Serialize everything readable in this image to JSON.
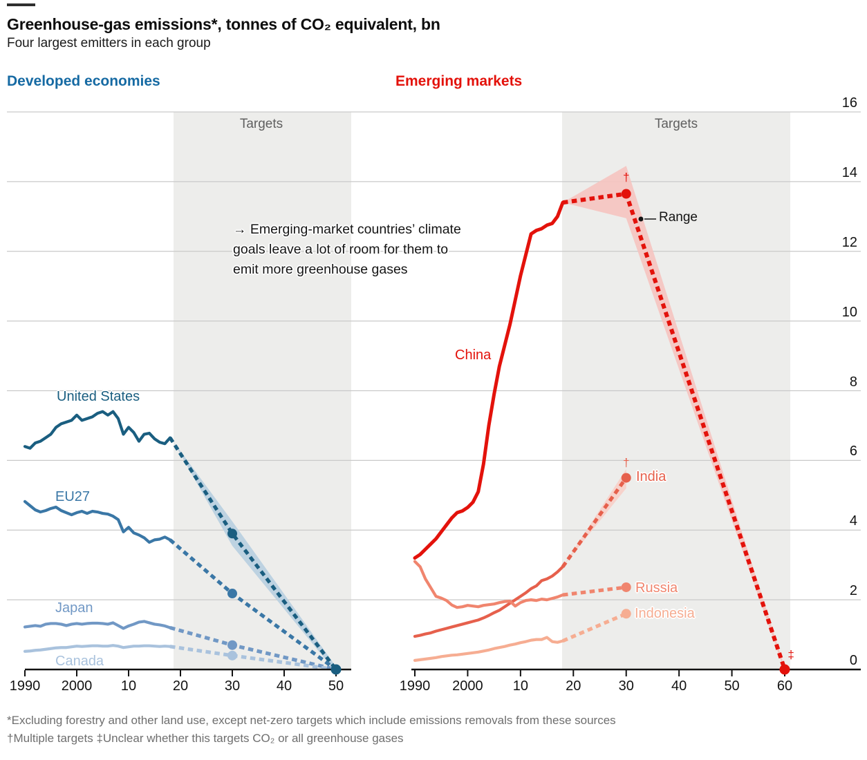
{
  "header": {
    "title": "Greenhouse-gas emissions*, tonnes of CO₂ equivalent, bn",
    "subtitle": "Four largest emitters in each group"
  },
  "panels": {
    "left_heading": "Developed economies",
    "left_heading_color": "#166aa3",
    "right_heading": "Emerging markets",
    "right_heading_color": "#e3120b"
  },
  "labels": {
    "targets": "Targets",
    "range": "Range"
  },
  "annotation": {
    "lines": [
      "→ Emerging-market countries’ climate",
      "goals leave a lot of room for them to",
      "emit more greenhouse gases"
    ]
  },
  "footnotes": [
    "*Excluding forestry and other land use, except net-zero targets which include emissions removals from these sources",
    "†Multiple targets ‡Unclear whether this targets CO₂ or all greenhouse gases"
  ],
  "y_axis": {
    "ticks": [
      0,
      2,
      4,
      6,
      8,
      10,
      12,
      14,
      16
    ],
    "max": 16
  },
  "chart_data": [
    {
      "type": "line",
      "panel": "developed",
      "title": "Developed economies",
      "unit": "tonnes of CO₂ equivalent, bn",
      "x_range": [
        1990,
        2050
      ],
      "ylim": [
        0,
        16
      ],
      "grid": true,
      "targets_shading": "2018-2050",
      "x_ticks": [
        [
          "1990",
          1990
        ],
        [
          "2000",
          2000
        ],
        [
          "10",
          2010
        ],
        [
          "20",
          2020
        ],
        [
          "30",
          2030
        ],
        [
          "40",
          2040
        ],
        [
          "50",
          2050
        ]
      ],
      "history_years_start": 1990,
      "series": [
        {
          "name": "United States",
          "color": "#1a5e80",
          "history": [
            6.4,
            6.35,
            6.5,
            6.55,
            6.65,
            6.75,
            6.95,
            7.05,
            7.1,
            7.15,
            7.3,
            7.15,
            7.2,
            7.25,
            7.35,
            7.4,
            7.3,
            7.4,
            7.2,
            6.75,
            6.95,
            6.8,
            6.55,
            6.75,
            6.78,
            6.62,
            6.52,
            6.48,
            6.65
          ],
          "target": [
            [
              2018,
              6.65
            ],
            [
              2030,
              3.9
            ],
            [
              2050,
              0
            ]
          ],
          "target_dot": [
            2030,
            3.9
          ]
        },
        {
          "name": "EU27",
          "color": "#3a77a6",
          "history": [
            4.82,
            4.7,
            4.58,
            4.52,
            4.56,
            4.62,
            4.66,
            4.56,
            4.5,
            4.44,
            4.5,
            4.54,
            4.48,
            4.54,
            4.52,
            4.48,
            4.46,
            4.4,
            4.3,
            3.95,
            4.08,
            3.92,
            3.86,
            3.78,
            3.65,
            3.72,
            3.74,
            3.8,
            3.72
          ],
          "target": [
            [
              2018,
              3.72
            ],
            [
              2030,
              2.18
            ],
            [
              2050,
              0
            ]
          ],
          "target_dot": [
            2030,
            2.18
          ]
        },
        {
          "name": "Japan",
          "color": "#7198c5",
          "history": [
            1.22,
            1.24,
            1.26,
            1.24,
            1.3,
            1.32,
            1.32,
            1.3,
            1.26,
            1.3,
            1.32,
            1.3,
            1.32,
            1.33,
            1.33,
            1.32,
            1.3,
            1.34,
            1.26,
            1.18,
            1.25,
            1.3,
            1.36,
            1.38,
            1.34,
            1.3,
            1.28,
            1.25,
            1.2
          ],
          "target": [
            [
              2018,
              1.2
            ],
            [
              2030,
              0.7
            ],
            [
              2050,
              0
            ]
          ],
          "target_dot": [
            2030,
            0.7
          ]
        },
        {
          "name": "Canada",
          "color": "#a9c2dd",
          "history": [
            0.52,
            0.53,
            0.55,
            0.56,
            0.58,
            0.6,
            0.62,
            0.63,
            0.63,
            0.65,
            0.67,
            0.66,
            0.67,
            0.68,
            0.68,
            0.67,
            0.67,
            0.69,
            0.67,
            0.63,
            0.65,
            0.67,
            0.67,
            0.68,
            0.68,
            0.67,
            0.66,
            0.67,
            0.66
          ],
          "target": [
            [
              2018,
              0.66
            ],
            [
              2030,
              0.4
            ],
            [
              2050,
              0
            ]
          ],
          "target_dot": [
            2030,
            0.4
          ]
        }
      ],
      "bands": [
        {
          "series": "United States",
          "color": "#b9cfe0",
          "points": [
            [
              2018.6,
              6.55
            ],
            [
              2030,
              4.25
            ],
            [
              2050,
              0.08
            ],
            [
              2050,
              -0.08
            ],
            [
              2030,
              3.55
            ]
          ]
        }
      ],
      "end_dot": {
        "year": 2050,
        "value": 0,
        "color": "#1a5e80"
      },
      "markers": []
    },
    {
      "type": "line",
      "panel": "emerging",
      "title": "Emerging markets",
      "unit": "tonnes of CO₂ equivalent, bn",
      "x_range": [
        1990,
        2060
      ],
      "ylim": [
        0,
        16
      ],
      "grid": true,
      "targets_shading": "2018-2060",
      "x_ticks": [
        [
          "1990",
          1990
        ],
        [
          "2000",
          2000
        ],
        [
          "10",
          2010
        ],
        [
          "20",
          2020
        ],
        [
          "30",
          2030
        ],
        [
          "40",
          2040
        ],
        [
          "50",
          2050
        ],
        [
          "60",
          2060
        ]
      ],
      "history_years_start": 1990,
      "series": [
        {
          "name": "China",
          "color": "#e3120b",
          "history": [
            3.2,
            3.3,
            3.45,
            3.6,
            3.75,
            3.95,
            4.15,
            4.35,
            4.5,
            4.55,
            4.65,
            4.8,
            5.1,
            5.9,
            7.0,
            7.9,
            8.7,
            9.3,
            9.9,
            10.6,
            11.3,
            11.9,
            12.5,
            12.6,
            12.65,
            12.75,
            12.8,
            13.0,
            13.4
          ],
          "target": [
            [
              2018,
              13.4
            ],
            [
              2030,
              13.65
            ],
            [
              2060,
              0
            ]
          ],
          "target_dot": [
            2030,
            13.65
          ]
        },
        {
          "name": "India",
          "color": "#e6604c",
          "history": [
            0.95,
            0.98,
            1.02,
            1.05,
            1.1,
            1.14,
            1.18,
            1.22,
            1.26,
            1.3,
            1.34,
            1.38,
            1.42,
            1.48,
            1.55,
            1.63,
            1.7,
            1.8,
            1.9,
            2.0,
            2.1,
            2.2,
            2.32,
            2.4,
            2.55,
            2.6,
            2.68,
            2.8,
            2.95
          ],
          "target": [
            [
              2018,
              2.95
            ],
            [
              2030,
              5.5
            ]
          ],
          "target_dot": [
            2030,
            5.5
          ]
        },
        {
          "name": "Russia",
          "color": "#f0856e",
          "history": [
            3.1,
            2.95,
            2.6,
            2.35,
            2.1,
            2.05,
            1.98,
            1.85,
            1.78,
            1.8,
            1.84,
            1.82,
            1.8,
            1.84,
            1.86,
            1.88,
            1.92,
            1.95,
            1.96,
            1.82,
            1.92,
            1.98,
            2.0,
            1.98,
            2.02,
            2.0,
            2.04,
            2.08,
            2.14
          ],
          "target": [
            [
              2018,
              2.14
            ],
            [
              2030,
              2.36
            ]
          ],
          "target_dot": [
            2030,
            2.36
          ]
        },
        {
          "name": "Indonesia",
          "color": "#f6ad92",
          "history": [
            0.26,
            0.28,
            0.3,
            0.32,
            0.34,
            0.37,
            0.39,
            0.41,
            0.42,
            0.44,
            0.46,
            0.48,
            0.5,
            0.53,
            0.56,
            0.6,
            0.63,
            0.66,
            0.7,
            0.73,
            0.77,
            0.8,
            0.84,
            0.86,
            0.86,
            0.92,
            0.8,
            0.78,
            0.82
          ],
          "target": [
            [
              2018,
              0.82
            ],
            [
              2030,
              1.6
            ]
          ],
          "target_dot": [
            2030,
            1.6
          ]
        }
      ],
      "bands": [
        {
          "series": "China",
          "color": "#f5c4c0",
          "points": [
            [
              2018,
              13.4
            ],
            [
              2030,
              14.45
            ],
            [
              2060,
              0.06
            ],
            [
              2060,
              -0.06
            ],
            [
              2030,
              12.95
            ]
          ]
        },
        {
          "series": "India",
          "color": "#f7cfc8",
          "points": [
            [
              2018,
              2.95
            ],
            [
              2030,
              5.75
            ],
            [
              2030,
              5.2
            ]
          ]
        }
      ],
      "end_dot": {
        "year": 2060,
        "value": 0,
        "color": "#e3120b"
      },
      "markers": [
        {
          "text": "†",
          "year": 2030,
          "value": 14.12,
          "color": "#e3120b"
        },
        {
          "text": "†",
          "year": 2030,
          "value": 5.92,
          "color": "#e6604c"
        },
        {
          "text": "‡",
          "year": 2061.2,
          "value": 0.42,
          "color": "#e3120b"
        }
      ]
    }
  ]
}
